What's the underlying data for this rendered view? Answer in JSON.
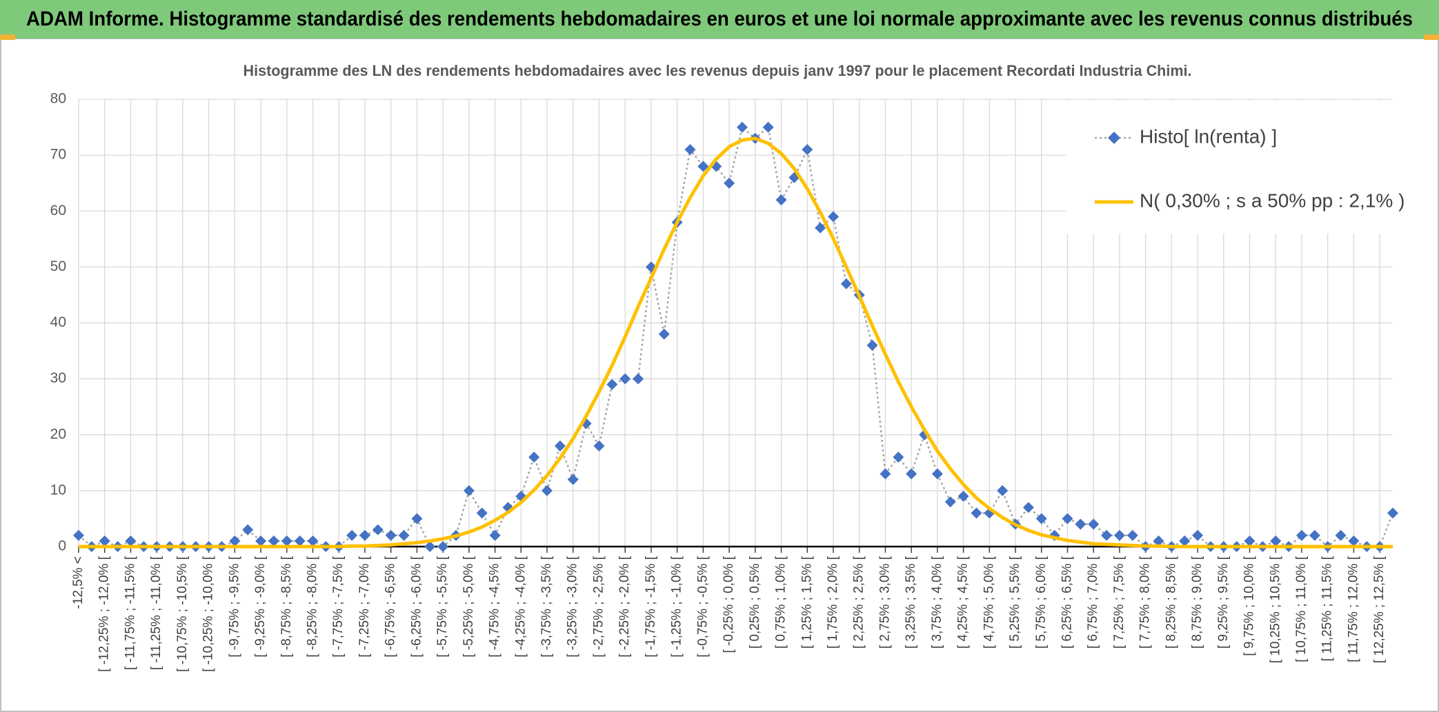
{
  "header": {
    "title": "ADAM Informe. Histogramme standardisé des rendements hebdomadaires en euros et une loi normale approximante avec les revenus connus distribués"
  },
  "chart_data": {
    "type": "line",
    "title": "Histogramme des LN des rendements hebdomadaires avec les revenus depuis janv 1997 pour le placement Recordati Industria Chimi.",
    "categories": [
      "-12,5% <",
      null,
      "[ -12,25% ; -12,0% [",
      null,
      "[ -11,75% ; -11,5% [",
      null,
      "[ -11,25% ; -11,0% [",
      null,
      "[ -10,75% ; -10,5% [",
      null,
      "[ -10,25% ; -10,0% [",
      null,
      "[ -9,75% ; -9,5% [",
      null,
      "[ -9,25% ; -9,0% [",
      null,
      "[ -8,75% ; -8,5% [",
      null,
      "[ -8,25% ; -8,0% [",
      null,
      "[ -7,75% ; -7,5% [",
      null,
      "[ -7,25% ; -7,0% [",
      null,
      "[ -6,75% ; -6,5% [",
      null,
      "[ -6,25% ; -6,0% [",
      null,
      "[ -5,75% ; -5,5% [",
      null,
      "[ -5,25% ; -5,0% [",
      null,
      "[ -4,75% ; -4,5% [",
      null,
      "[ -4,25% ; -4,0% [",
      null,
      "[ -3,75% ; -3,5% [",
      null,
      "[ -3,25% ; -3,0% [",
      null,
      "[ -2,75% ; -2,5% [",
      null,
      "[ -2,25% ; -2,0% [",
      null,
      "[ -1,75% ; -1,5% [",
      null,
      "[ -1,25% ; -1,0% [",
      null,
      "[ -0,75% ; -0,5% [",
      null,
      "[ -0,25% ; 0,0% [",
      null,
      "[ 0,25% ; 0,5% [",
      null,
      "[ 0,75% ; 1,0% [",
      null,
      "[ 1,25% ; 1,5% [",
      null,
      "[ 1,75% ; 2,0% [",
      null,
      "[ 2,25% ; 2,5% [",
      null,
      "[ 2,75% ; 3,0% [",
      null,
      "[ 3,25% ; 3,5% [",
      null,
      "[ 3,75% ; 4,0% [",
      null,
      "[ 4,25% ; 4,5% [",
      null,
      "[ 4,75% ; 5,0% [",
      null,
      "[ 5,25% ; 5,5% [",
      null,
      "[ 5,75% ; 6,0% [",
      null,
      "[ 6,25% ; 6,5% [",
      null,
      "[ 6,75% ; 7,0% [",
      null,
      "[ 7,25% ; 7,5% [",
      null,
      "[ 7,75% ; 8,0% [",
      null,
      "[ 8,25% ; 8,5% [",
      null,
      "[ 8,75% ; 9,0% [",
      null,
      "[ 9,25% ; 9,5% [",
      null,
      "[ 9,75% ; 10,0% [",
      null,
      "[ 10,25% ; 10,5% [",
      null,
      "[ 10,75% ; 11,0% [",
      null,
      "[ 11,25% ; 11,5% [",
      null,
      "[ 11,75% ; 12,0% [",
      null,
      "[ 12,25% ; 12,5% [",
      null
    ],
    "series": [
      {
        "name": "Histo[ ln(renta) ]",
        "color": "#4472c4",
        "line_color": "#a5a5a5",
        "marker": "diamond",
        "line_style": "dotted",
        "values": [
          2,
          0,
          1,
          0,
          1,
          0,
          0,
          0,
          0,
          0,
          0,
          0,
          1,
          3,
          1,
          1,
          1,
          1,
          1,
          0,
          0,
          2,
          2,
          3,
          2,
          2,
          5,
          0,
          0,
          2,
          10,
          6,
          2,
          7,
          9,
          16,
          10,
          18,
          12,
          22,
          18,
          29,
          30,
          30,
          50,
          38,
          58,
          71,
          68,
          68,
          65,
          75,
          73,
          75,
          62,
          66,
          71,
          57,
          59,
          47,
          45,
          36,
          13,
          16,
          13,
          20,
          13,
          8,
          9,
          6,
          6,
          10,
          4,
          7,
          5,
          2,
          5,
          4,
          4,
          2,
          2,
          2,
          0,
          1,
          0,
          1,
          2,
          0,
          0,
          0,
          1,
          0,
          1,
          0,
          2,
          2,
          0,
          2,
          1,
          0,
          0,
          6
        ]
      },
      {
        "name": "N( 0,30% ; s a 50% pp : 2,1% )",
        "color": "#ffc000",
        "marker": "none",
        "line_style": "solid",
        "values": [
          0,
          0,
          0,
          0,
          0,
          0,
          0,
          0,
          0,
          0,
          0,
          0,
          0,
          0,
          0,
          0,
          0,
          0,
          0,
          0,
          0,
          0.1,
          0.1,
          0.2,
          0.3,
          0.5,
          0.7,
          1.0,
          1.4,
          1.9,
          2.6,
          3.5,
          4.7,
          6.1,
          7.9,
          10.1,
          12.7,
          15.8,
          19.3,
          23.3,
          27.7,
          32.4,
          37.5,
          42.9,
          48.0,
          53.2,
          58.0,
          62.4,
          66.3,
          69.3,
          71.5,
          72.7,
          73.0,
          72.1,
          70.3,
          67.6,
          64.0,
          59.8,
          55.1,
          50.0,
          44.8,
          39.5,
          34.4,
          29.5,
          25.0,
          20.9,
          17.1,
          13.9,
          11.1,
          8.7,
          6.8,
          5.2,
          3.9,
          2.9,
          2.1,
          1.6,
          1.1,
          0.8,
          0.5,
          0.4,
          0.3,
          0.2,
          0.1,
          0.1,
          0,
          0,
          0,
          0,
          0,
          0,
          0,
          0,
          0,
          0,
          0,
          0,
          0,
          0,
          0,
          0,
          0,
          0
        ]
      }
    ],
    "ylim": [
      0,
      80
    ],
    "yticks": [
      0,
      10,
      20,
      30,
      40,
      50,
      60,
      70,
      80
    ],
    "grid": true,
    "legend": "top-right"
  }
}
